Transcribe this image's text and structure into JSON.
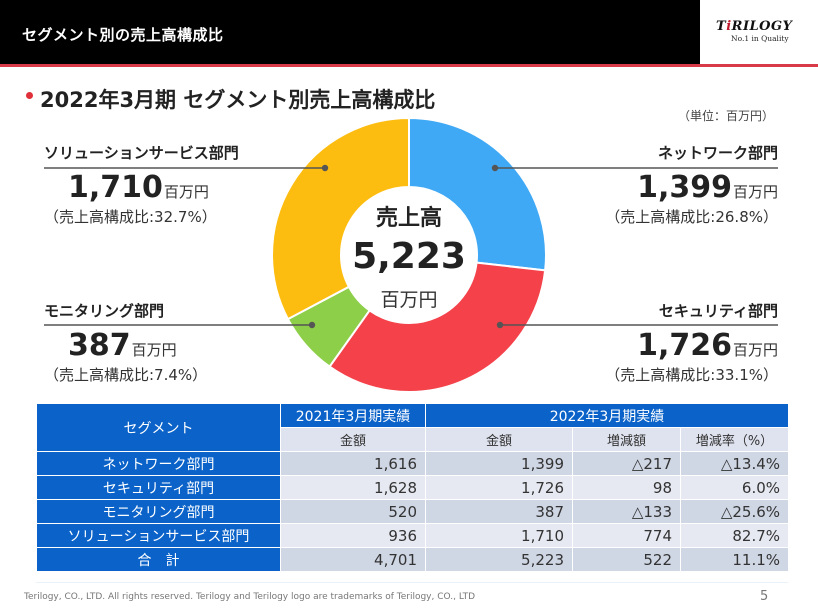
{
  "header": {
    "title": "セグメント別の売上高構成比",
    "logo": {
      "brand_pre": "T",
      "brand_accent": "i",
      "brand_post": "RILOGY",
      "tagline": "No.1 in Quality"
    }
  },
  "subtitle": "2022年3月期 セグメント別売上高構成比",
  "unit_note": "（単位：百万円）",
  "colors": {
    "network": "#3fa9f5",
    "security": "#f4414a",
    "monitoring": "#8ecf4a",
    "solution": "#fdbd10",
    "table_header": "#0b63c9",
    "header_rule": "#d83a4a"
  },
  "segments": {
    "solution": {
      "name": "ソリューションサービス部門",
      "value": "1,710",
      "unit": "百万円",
      "ratio": "（売上高構成比:32.7%）"
    },
    "network": {
      "name": "ネットワーク部門",
      "value": "1,399",
      "unit": "百万円",
      "ratio": "（売上高構成比:26.8%）"
    },
    "monitoring": {
      "name": "モニタリング部門",
      "value": "387",
      "unit": "百万円",
      "ratio": "（売上高構成比:7.4%）"
    },
    "security": {
      "name": "セキュリティ部門",
      "value": "1,726",
      "unit": "百万円",
      "ratio": "（売上高構成比:33.1%）"
    }
  },
  "center": {
    "title": "売上高",
    "value": "5,223",
    "unit": "百万円"
  },
  "chart_data": {
    "type": "pie",
    "variant": "donut",
    "title": "2022年3月期 セグメント別売上高構成比",
    "unit": "百万円",
    "total": 5223,
    "start_angle": "12 o'clock",
    "direction": "clockwise",
    "slices": [
      {
        "key": "network",
        "label": "ネットワーク部門",
        "value": 1399,
        "percent": 26.8
      },
      {
        "key": "security",
        "label": "セキュリティ部門",
        "value": 1726,
        "percent": 33.1
      },
      {
        "key": "monitoring",
        "label": "モニタリング部門",
        "value": 387,
        "percent": 7.4
      },
      {
        "key": "solution",
        "label": "ソリューションサービス部門",
        "value": 1710,
        "percent": 32.7
      }
    ]
  },
  "table": {
    "segment_header": "セグメント",
    "period_2021": "2021年3月期実績",
    "period_2022": "2022年3月期実績",
    "col_amount": "金額",
    "col_change": "増減額",
    "col_rate": "増減率（%）",
    "rows": [
      {
        "segment": "ネットワーク部門",
        "fy2021": "1,616",
        "fy2022": "1,399",
        "change": "△217",
        "rate": "△13.4%"
      },
      {
        "segment": "セキュリティ部門",
        "fy2021": "1,628",
        "fy2022": "1,726",
        "change": "98",
        "rate": "6.0%"
      },
      {
        "segment": "モニタリング部門",
        "fy2021": "520",
        "fy2022": "387",
        "change": "△133",
        "rate": "△25.6%"
      },
      {
        "segment": "ソリューションサービス部門",
        "fy2021": "936",
        "fy2022": "1,710",
        "change": "774",
        "rate": "82.7%"
      },
      {
        "segment": "合　計",
        "fy2021": "4,701",
        "fy2022": "5,223",
        "change": "522",
        "rate": "11.1%"
      }
    ]
  },
  "footer": {
    "copyright": "Terilogy, CO., LTD. All rights reserved. Terilogy and Terilogy logo are trademarks of Terilogy, CO., LTD",
    "page_number": "5"
  }
}
